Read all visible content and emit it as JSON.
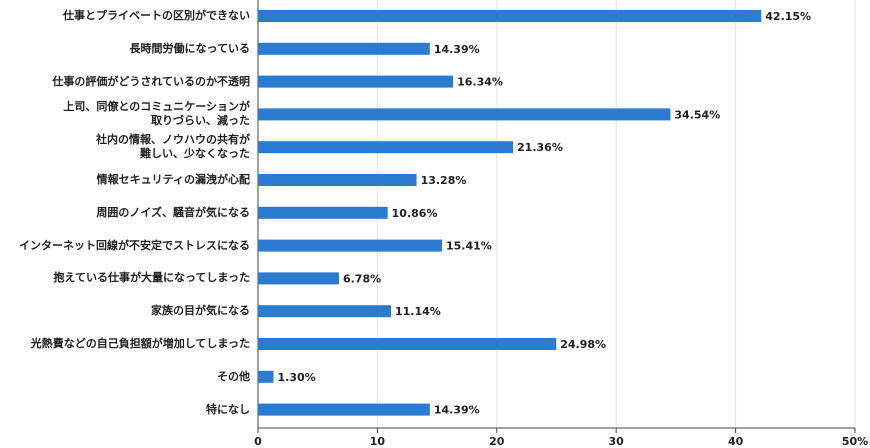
{
  "chart_data": {
    "type": "bar",
    "orientation": "horizontal",
    "categories": [
      "仕事とプライベートの区別ができない",
      "長時間労働になっている",
      "仕事の評価がどうされているのか不透明",
      "上司、同僚とのコミュニケーションが\n取りづらい、減った",
      "社内の情報、ノウハウの共有が\n難しい、少なくなった",
      "情報セキュリティの漏洩が心配",
      "周囲のノイズ、騒音が気になる",
      "インターネット回線が不安定でストレスになる",
      "抱えている仕事が大量になってしまった",
      "家族の目が気になる",
      "光熱費などの自己負担額が増加してしまった",
      "その他",
      "特になし"
    ],
    "values": [
      42.15,
      14.39,
      16.34,
      34.54,
      21.36,
      13.28,
      10.86,
      15.41,
      6.78,
      11.14,
      24.98,
      1.3,
      14.39
    ],
    "value_labels": [
      "42.15%",
      "14.39%",
      "16.34%",
      "34.54%",
      "21.36%",
      "13.28%",
      "10.86%",
      "15.41%",
      "6.78%",
      "11.14%",
      "24.98%",
      "1.30%",
      "14.39%"
    ],
    "color": "#2b7bd0",
    "xlim": [
      0,
      50
    ],
    "xticks": [
      0,
      10,
      20,
      30,
      40,
      {
        "value": 50,
        "label": "50%"
      }
    ],
    "grid": true
  }
}
